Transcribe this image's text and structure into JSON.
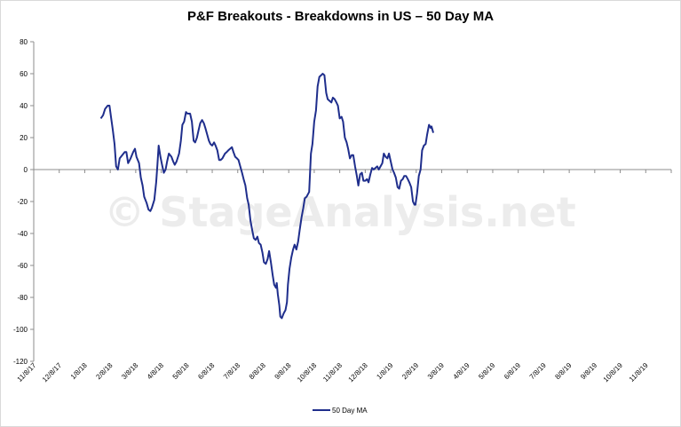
{
  "chart_data": {
    "type": "line",
    "title": "P&F Breakouts - Breakdowns in US – 50 Day MA",
    "watermark": "© StageAnalysis.net",
    "xlabel": "",
    "ylabel": "",
    "ylim": [
      -120,
      80
    ],
    "yticks": [
      "80",
      "60",
      "40",
      "20",
      "0",
      "-20",
      "-40",
      "-60",
      "-80",
      "-100",
      "-120"
    ],
    "ytick_values": [
      80,
      60,
      40,
      20,
      0,
      -20,
      -40,
      -60,
      -80,
      -100,
      -120
    ],
    "xticks": [
      "11/8/17",
      "12/8/17",
      "1/8/18",
      "2/8/18",
      "3/8/18",
      "4/8/18",
      "5/8/18",
      "6/8/18",
      "7/8/18",
      "8/8/18",
      "9/8/18",
      "10/8/18",
      "11/8/18",
      "12/8/18",
      "1/8/19",
      "2/8/19",
      "3/8/19",
      "4/8/19",
      "5/8/19",
      "6/8/19",
      "7/8/19",
      "8/8/19",
      "9/8/19",
      "10/8/19",
      "11/8/19"
    ],
    "grid": false,
    "legend_position": "bottom",
    "line_color": "#1f2e8c",
    "series": [
      {
        "name": "50 Day MA",
        "points": [
          [
            2.63,
            32
          ],
          [
            2.72,
            34
          ],
          [
            2.8,
            38
          ],
          [
            2.9,
            40
          ],
          [
            2.97,
            40
          ],
          [
            3.03,
            33
          ],
          [
            3.1,
            25
          ],
          [
            3.17,
            16
          ],
          [
            3.23,
            2
          ],
          [
            3.3,
            0
          ],
          [
            3.37,
            7
          ],
          [
            3.47,
            9
          ],
          [
            3.57,
            11
          ],
          [
            3.63,
            11
          ],
          [
            3.7,
            4
          ],
          [
            3.8,
            7
          ],
          [
            3.9,
            11
          ],
          [
            3.97,
            13
          ],
          [
            4.03,
            8
          ],
          [
            4.13,
            4
          ],
          [
            4.2,
            -5
          ],
          [
            4.27,
            -10
          ],
          [
            4.33,
            -17
          ],
          [
            4.43,
            -21
          ],
          [
            4.5,
            -25
          ],
          [
            4.57,
            -26
          ],
          [
            4.63,
            -24
          ],
          [
            4.73,
            -19
          ],
          [
            4.8,
            -8
          ],
          [
            4.85,
            3
          ],
          [
            4.9,
            15
          ],
          [
            4.97,
            8
          ],
          [
            5.03,
            3
          ],
          [
            5.1,
            -2
          ],
          [
            5.17,
            0
          ],
          [
            5.23,
            5
          ],
          [
            5.3,
            10
          ],
          [
            5.4,
            8
          ],
          [
            5.47,
            5
          ],
          [
            5.53,
            3
          ],
          [
            5.6,
            5
          ],
          [
            5.7,
            10
          ],
          [
            5.77,
            18
          ],
          [
            5.83,
            28
          ],
          [
            5.9,
            30
          ],
          [
            5.97,
            36
          ],
          [
            6.03,
            35
          ],
          [
            6.13,
            35
          ],
          [
            6.2,
            30
          ],
          [
            6.27,
            18
          ],
          [
            6.33,
            17
          ],
          [
            6.4,
            20
          ],
          [
            6.47,
            25
          ],
          [
            6.53,
            29
          ],
          [
            6.6,
            31
          ],
          [
            6.67,
            29
          ],
          [
            6.73,
            26
          ],
          [
            6.8,
            22
          ],
          [
            6.87,
            18
          ],
          [
            6.93,
            16
          ],
          [
            7.0,
            15
          ],
          [
            7.07,
            17
          ],
          [
            7.13,
            15
          ],
          [
            7.2,
            12
          ],
          [
            7.27,
            6
          ],
          [
            7.33,
            6
          ],
          [
            7.4,
            7
          ],
          [
            7.5,
            10
          ],
          [
            7.57,
            11
          ],
          [
            7.63,
            12
          ],
          [
            7.7,
            13
          ],
          [
            7.77,
            14
          ],
          [
            7.83,
            11
          ],
          [
            7.9,
            8
          ],
          [
            7.97,
            7
          ],
          [
            8.03,
            6
          ],
          [
            8.1,
            2
          ],
          [
            8.17,
            -2
          ],
          [
            8.23,
            -6
          ],
          [
            8.3,
            -10
          ],
          [
            8.37,
            -18
          ],
          [
            8.43,
            -22
          ],
          [
            8.5,
            -32
          ],
          [
            8.57,
            -38
          ],
          [
            8.63,
            -43
          ],
          [
            8.7,
            -44
          ],
          [
            8.77,
            -42
          ],
          [
            8.83,
            -46
          ],
          [
            8.9,
            -47
          ],
          [
            8.97,
            -52
          ],
          [
            9.03,
            -58
          ],
          [
            9.1,
            -59
          ],
          [
            9.17,
            -56
          ],
          [
            9.23,
            -51
          ],
          [
            9.3,
            -58
          ],
          [
            9.37,
            -66
          ],
          [
            9.43,
            -72
          ],
          [
            9.5,
            -74
          ],
          [
            9.53,
            -71
          ],
          [
            9.57,
            -78
          ],
          [
            9.63,
            -85
          ],
          [
            9.67,
            -92
          ],
          [
            9.73,
            -93
          ],
          [
            9.8,
            -90
          ],
          [
            9.87,
            -88
          ],
          [
            9.93,
            -83
          ],
          [
            9.97,
            -72
          ],
          [
            10.03,
            -62
          ],
          [
            10.1,
            -55
          ],
          [
            10.17,
            -50
          ],
          [
            10.23,
            -47
          ],
          [
            10.3,
            -50
          ],
          [
            10.37,
            -45
          ],
          [
            10.43,
            -38
          ],
          [
            10.5,
            -30
          ],
          [
            10.57,
            -24
          ],
          [
            10.63,
            -18
          ],
          [
            10.7,
            -17
          ],
          [
            10.8,
            -14
          ],
          [
            10.87,
            10
          ],
          [
            10.93,
            16
          ],
          [
            11.0,
            30
          ],
          [
            11.07,
            37
          ],
          [
            11.13,
            52
          ],
          [
            11.2,
            58
          ],
          [
            11.27,
            59
          ],
          [
            11.33,
            60
          ],
          [
            11.4,
            59
          ],
          [
            11.47,
            48
          ],
          [
            11.53,
            44
          ],
          [
            11.6,
            43
          ],
          [
            11.67,
            42
          ],
          [
            11.73,
            45
          ],
          [
            11.8,
            44
          ],
          [
            11.87,
            42
          ],
          [
            11.93,
            40
          ],
          [
            12.0,
            32
          ],
          [
            12.07,
            33
          ],
          [
            12.13,
            30
          ],
          [
            12.2,
            20
          ],
          [
            12.27,
            17
          ],
          [
            12.33,
            13
          ],
          [
            12.4,
            7
          ],
          [
            12.47,
            9
          ],
          [
            12.53,
            9
          ],
          [
            12.6,
            2
          ],
          [
            12.67,
            -4
          ],
          [
            12.73,
            -10
          ],
          [
            12.8,
            -3
          ],
          [
            12.87,
            -2
          ],
          [
            12.93,
            -7
          ],
          [
            13.0,
            -7
          ],
          [
            13.07,
            -6
          ],
          [
            13.13,
            -8
          ],
          [
            13.2,
            -3
          ],
          [
            13.27,
            1
          ],
          [
            13.33,
            0
          ],
          [
            13.4,
            1
          ],
          [
            13.47,
            2
          ],
          [
            13.53,
            0
          ],
          [
            13.6,
            2
          ],
          [
            13.67,
            4
          ],
          [
            13.73,
            10
          ],
          [
            13.8,
            8
          ],
          [
            13.87,
            7
          ],
          [
            13.93,
            10
          ],
          [
            14.0,
            5
          ],
          [
            14.07,
            0
          ],
          [
            14.13,
            -2
          ],
          [
            14.2,
            -5
          ],
          [
            14.27,
            -11
          ],
          [
            14.33,
            -12
          ],
          [
            14.4,
            -7
          ],
          [
            14.47,
            -6
          ],
          [
            14.53,
            -4
          ],
          [
            14.6,
            -4
          ],
          [
            14.67,
            -6
          ],
          [
            14.73,
            -8
          ],
          [
            14.8,
            -11
          ],
          [
            14.87,
            -20
          ],
          [
            14.93,
            -22
          ],
          [
            14.97,
            -22
          ],
          [
            15.03,
            -15
          ],
          [
            15.1,
            -4
          ],
          [
            15.17,
            0
          ],
          [
            15.23,
            12
          ],
          [
            15.3,
            15
          ],
          [
            15.37,
            16
          ],
          [
            15.43,
            22
          ],
          [
            15.5,
            28
          ],
          [
            15.57,
            26
          ],
          [
            15.6,
            27
          ],
          [
            15.67,
            23
          ]
        ]
      }
    ]
  }
}
